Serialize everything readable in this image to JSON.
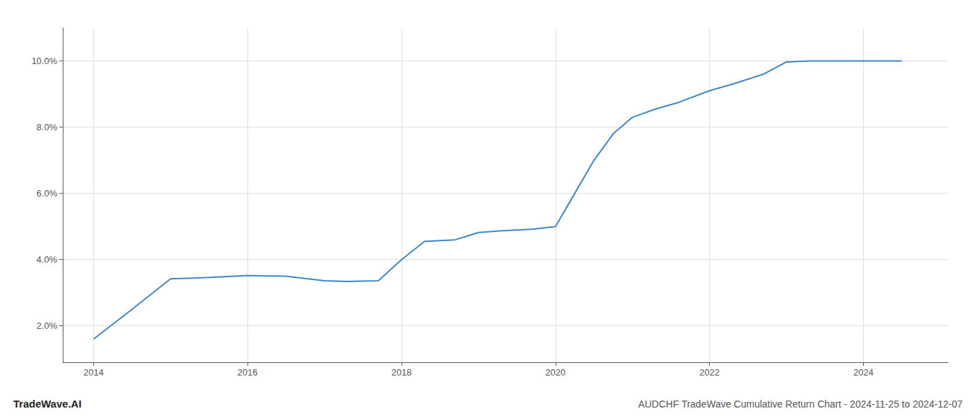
{
  "chart_data": {
    "type": "line",
    "title": "AUDCHF TradeWave Cumulative Return Chart - 2024-11-25 to 2024-12-07",
    "annotations": [
      "TradeWave.AI"
    ],
    "x": [
      2014.0,
      2014.5,
      2015.0,
      2015.5,
      2016.0,
      2016.5,
      2017.0,
      2017.3,
      2017.7,
      2018.0,
      2018.3,
      2018.7,
      2019.0,
      2019.3,
      2019.7,
      2020.0,
      2020.25,
      2020.5,
      2020.75,
      2021.0,
      2021.3,
      2021.6,
      2022.0,
      2022.3,
      2022.7,
      2023.0,
      2023.3,
      2023.6,
      2024.0,
      2024.5
    ],
    "values": [
      1.6,
      2.5,
      3.42,
      3.46,
      3.52,
      3.5,
      3.36,
      3.34,
      3.36,
      4.0,
      4.55,
      4.6,
      4.82,
      4.87,
      4.92,
      5.0,
      6.0,
      7.0,
      7.8,
      8.3,
      8.55,
      8.75,
      9.1,
      9.3,
      9.6,
      9.97,
      10.0,
      10.0,
      10.0,
      10.0
    ],
    "color": "#3a86c8",
    "xlim": [
      2013.6,
      2025.1
    ],
    "ylim": [
      0.9,
      11.0
    ],
    "xticks": [
      2014,
      2016,
      2018,
      2020,
      2022,
      2024
    ],
    "yticks": [
      {
        "value": 2.0,
        "label": "2.0%"
      },
      {
        "value": 4.0,
        "label": "4.0%"
      },
      {
        "value": 6.0,
        "label": "6.0%"
      },
      {
        "value": 8.0,
        "label": "8.0%"
      },
      {
        "value": 10.0,
        "label": "10.0%"
      }
    ],
    "grid": true
  }
}
